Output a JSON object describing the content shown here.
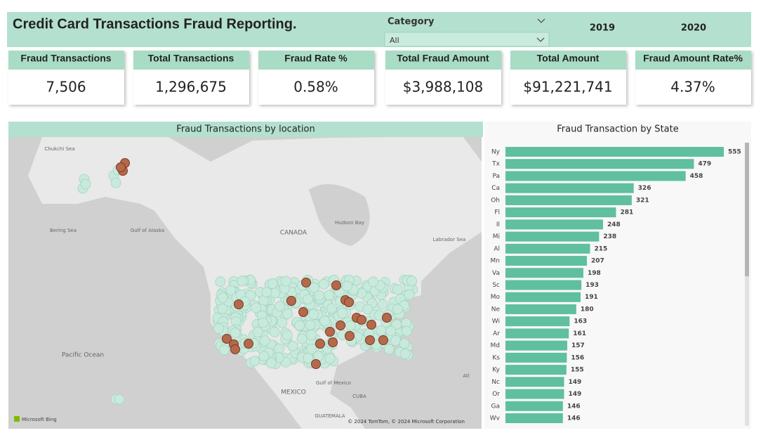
{
  "header": {
    "title": "Credit Card Transactions Fraud Reporting.",
    "filter_label": "Category",
    "filter_value": "All",
    "years": [
      "2019",
      "2020"
    ]
  },
  "cards": [
    {
      "label": "Fraud Transactions",
      "value": "7,506"
    },
    {
      "label": "Total Transactions",
      "value": "1,296,675"
    },
    {
      "label": "Fraud Rate %",
      "value": "0.58%"
    },
    {
      "label": "Total Fraud Amount",
      "value": "$3,988,108"
    },
    {
      "label": "Total Amount",
      "value": "$91,221,741"
    },
    {
      "label": "Fraud Amount Rate%",
      "value": "4.37%"
    }
  ],
  "map": {
    "title": "Fraud Transactions by location",
    "labels": [
      "Chukchi Sea",
      "Bering Sea",
      "Gulf of Alaska",
      "CANADA",
      "Hudson Bay",
      "Labrador Sea",
      "Pacific Ocean",
      "MEXICO",
      "Gulf of Mexico",
      "CUBA",
      "GUATEMALA",
      "Atl"
    ],
    "brand": "Microsoft Bing",
    "credit": "© 2024 TomTom, © 2024 Microsoft Corporation"
  },
  "chart_data": {
    "type": "bar",
    "orientation": "horizontal",
    "title": "Fraud Transaction by State",
    "color": "#5fbf9f",
    "categories": [
      "Ny",
      "Tx",
      "Pa",
      "Ca",
      "Oh",
      "Fl",
      "Il",
      "Mi",
      "Al",
      "Mn",
      "Va",
      "Sc",
      "Mo",
      "Ne",
      "Wi",
      "Ar",
      "Md",
      "Ks",
      "Ky",
      "Nc",
      "Or",
      "Ga",
      "Wv"
    ],
    "values": [
      555,
      479,
      458,
      326,
      321,
      281,
      248,
      238,
      215,
      207,
      198,
      193,
      191,
      180,
      163,
      161,
      157,
      156,
      155,
      149,
      149,
      146,
      146
    ]
  }
}
